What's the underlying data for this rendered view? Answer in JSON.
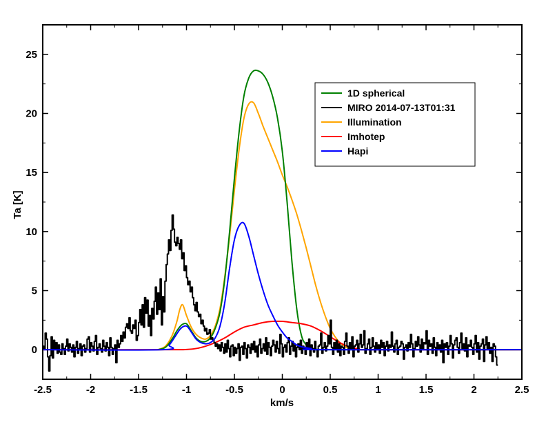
{
  "chart_data": {
    "type": "line",
    "title": "",
    "xlabel": "km/s",
    "ylabel": "Ta [K]",
    "xlim": [
      -2.5,
      2.5
    ],
    "ylim": [
      -2.5,
      27.5
    ],
    "xticks": [
      "-2.5",
      "-2",
      "-1.5",
      "-1",
      "-0.5",
      "0",
      "0.5",
      "1",
      "1.5",
      "2",
      "2.5"
    ],
    "yticks": [
      "0",
      "5",
      "10",
      "15",
      "20",
      "25"
    ],
    "legend_position": "upper-right",
    "series": [
      {
        "name": "1D spherical",
        "color": "#008000",
        "style": "smooth",
        "x": [
          -1.3,
          -1.22,
          -1.15,
          -1.1,
          -1.05,
          -1.0,
          -0.95,
          -0.9,
          -0.85,
          -0.8,
          -0.75,
          -0.7,
          -0.65,
          -0.6,
          -0.55,
          -0.5,
          -0.45,
          -0.4,
          -0.35,
          -0.3,
          -0.25,
          -0.2,
          -0.15,
          -0.1,
          -0.05,
          0.0,
          0.05,
          0.1,
          0.15,
          0.2,
          0.25,
          0.3,
          0.4,
          0.5,
          2.5
        ],
        "y": [
          0,
          0.2,
          0.9,
          1.6,
          2.1,
          2.2,
          1.6,
          1.0,
          0.7,
          0.7,
          1.0,
          1.8,
          3.2,
          6.0,
          10.0,
          14.5,
          18.5,
          21.5,
          23.0,
          23.6,
          23.6,
          23.3,
          22.6,
          21.4,
          19.6,
          16.8,
          12.5,
          7.5,
          3.5,
          1.2,
          0.4,
          0.1,
          0,
          0,
          0
        ]
      },
      {
        "name": "MIRO 2014-07-13T01:31",
        "color": "#000000",
        "style": "step",
        "x_start": -2.5,
        "x_step": 0.0125,
        "y": [
          0.3,
          0.0,
          1.4,
          0.9,
          -0.6,
          -1.8,
          -0.5,
          1.1,
          -0.7,
          0.8,
          0.1,
          0.6,
          -0.3,
          0.4,
          -0.2,
          -0.4,
          0.5,
          0.1,
          -0.4,
          0.3,
          0.9,
          -0.1,
          0.5,
          0.2,
          -0.2,
          0.4,
          -0.6,
          0.2,
          0.7,
          -0.3,
          0.1,
          0.5,
          -0.5,
          0.3,
          0.4,
          -0.2,
          0.1,
          0.9,
          1.1,
          -0.2,
          0.6,
          0.3,
          -0.1,
          0.7,
          1.2,
          -0.4,
          0.2,
          0.5,
          0.1,
          -0.2,
          0.8,
          0.3,
          -0.1,
          0.6,
          0.2,
          -0.5,
          1.0,
          0.2,
          -0.4,
          0.1,
          0.4,
          -1.1,
          0.8,
          0.2,
          0.5,
          1.2,
          0.7,
          1.5,
          1.0,
          1.9,
          2.2,
          1.8,
          2.7,
          1.6,
          1.4,
          2.1,
          1.8,
          2.5,
          0.8,
          1.2,
          2.3,
          3.4,
          2.1,
          3.8,
          1.9,
          4.4,
          3.1,
          4.2,
          2.0,
          2.9,
          1.2,
          3.5,
          2.6,
          4.1,
          5.3,
          3.0,
          4.8,
          3.4,
          6.0,
          2.1,
          4.5,
          3.2,
          5.8,
          7.2,
          8.1,
          9.3,
          8.4,
          10.1,
          11.4,
          10.2,
          9.1,
          8.8,
          9.5,
          9.0,
          8.5,
          9.3,
          7.7,
          8.2,
          6.7,
          7.1,
          6.1,
          5.5,
          5.8,
          4.9,
          5.3,
          4.4,
          3.8,
          3.3,
          4.0,
          3.2,
          2.8,
          3.0,
          2.2,
          2.5,
          2.0,
          1.6,
          1.8,
          1.3,
          1.4,
          1.7,
          0.9,
          1.0,
          0.8,
          0.6,
          0.3,
          0.5,
          0.1,
          0.4,
          -0.1,
          0.6,
          0.2,
          -0.3,
          0.5,
          -0.2,
          0.8,
          0.1,
          -0.6,
          0.3,
          0.4,
          -0.5,
          0.2,
          -0.3,
          0.1,
          0.5,
          -0.9,
          0.2,
          0.3,
          -0.4,
          0.6,
          0.1,
          -0.7,
          0.4,
          0.2,
          -0.3,
          0.5,
          0.0,
          0.7,
          -0.2,
          0.3,
          -0.6,
          0.4,
          0.9,
          -0.3,
          0.1,
          0.5,
          -0.1,
          1.0,
          -0.4,
          0.6,
          0.2,
          -0.5,
          0.3,
          0.8,
          0.4,
          -0.2,
          0.7,
          0.1,
          -0.3,
          1.3,
          0.5,
          -0.6,
          0.2,
          0.4,
          -0.2,
          0.6,
          1.0,
          -0.4,
          0.3,
          0.7,
          -0.1,
          0.4,
          -0.6,
          0.2,
          0.5,
          0.0,
          0.8,
          -0.3,
          0.3,
          0.1,
          -0.4,
          0.6,
          0.2,
          0.9,
          -0.5,
          0.4,
          0.1,
          -0.2,
          0.7,
          0.0,
          -0.6,
          0.3,
          0.4,
          1.4,
          -0.3,
          0.2,
          0.6,
          -0.1,
          0.3,
          1.2,
          0.5,
          2.5,
          0.2,
          -0.4,
          0.6,
          0.1,
          0.8,
          -0.2,
          0.5,
          -0.5,
          0.3,
          0.2,
          -0.4,
          0.7,
          1.4,
          0.3,
          -0.3,
          0.6,
          0.1,
          1.1,
          -0.6,
          0.3,
          0.4,
          0.8,
          -0.2,
          0.5,
          1.3,
          0.2,
          0.4,
          1.6,
          -0.3,
          0.1,
          0.5,
          0.9,
          -0.4,
          0.2,
          1.0,
          0.3,
          -0.2,
          0.6,
          0.1,
          0.4,
          -0.3,
          0.8,
          0.2,
          0.6,
          -0.5,
          0.3,
          0.7,
          -0.1,
          0.4,
          0.2,
          1.5,
          0.3,
          -0.2,
          0.5,
          0.8,
          -0.4,
          0.2,
          0.3,
          0.7,
          0.5,
          -0.8,
          0.2,
          0.4,
          -0.1,
          0.6,
          0.2,
          1.3,
          0.5,
          -0.6,
          0.1,
          0.7,
          0.3,
          1.1,
          0.4,
          -0.2,
          0.9,
          0.0,
          0.6,
          0.5,
          1.6,
          -0.4,
          0.8,
          0.3,
          0.5,
          -0.3,
          1.0,
          0.2,
          -0.5,
          0.6,
          0.1,
          0.4,
          -0.2,
          0.8,
          -1.1,
          0.5,
          0.2,
          0.6,
          -0.4,
          0.3,
          1.2,
          0.5,
          -0.7,
          0.4,
          0.8,
          1.0,
          0.2,
          -0.3,
          0.6,
          1.4,
          0.1,
          0.5,
          -0.1,
          1.0,
          -0.6,
          0.4,
          0.3,
          0.8,
          0.2,
          -0.4,
          0.5,
          1.2,
          -0.2,
          0.6,
          -0.8,
          0.3,
          0.5,
          0.9,
          -1.0,
          0.4,
          1.1,
          0.1,
          0.6,
          -0.3,
          0.2,
          -1.0,
          0.5,
          0.3,
          -0.6,
          -1.3
        ]
      },
      {
        "name": "Illumination",
        "color": "#FFA500",
        "style": "smooth",
        "x": [
          -1.3,
          -1.22,
          -1.15,
          -1.1,
          -1.07,
          -1.04,
          -1.0,
          -0.95,
          -0.9,
          -0.85,
          -0.8,
          -0.75,
          -0.7,
          -0.65,
          -0.6,
          -0.55,
          -0.5,
          -0.45,
          -0.4,
          -0.35,
          -0.3,
          -0.25,
          -0.2,
          -0.15,
          -0.1,
          -0.05,
          0.0,
          0.05,
          0.1,
          0.15,
          0.2,
          0.25,
          0.3,
          0.35,
          0.4,
          0.45,
          0.5,
          0.55,
          0.6,
          0.65,
          0.7,
          0.8,
          0.9,
          2.5
        ],
        "y": [
          0,
          0.3,
          1.2,
          2.4,
          3.4,
          3.8,
          2.9,
          1.9,
          1.3,
          1.0,
          0.9,
          1.2,
          2.0,
          3.5,
          6.2,
          9.6,
          13.5,
          17.0,
          19.6,
          20.8,
          20.9,
          20.0,
          18.9,
          17.9,
          16.9,
          15.9,
          14.8,
          13.8,
          12.7,
          11.5,
          10.1,
          8.6,
          7.0,
          5.4,
          4.0,
          2.8,
          1.8,
          1.1,
          0.6,
          0.3,
          0.1,
          0,
          0,
          0
        ]
      },
      {
        "name": "Imhotep",
        "color": "#FF0000",
        "style": "smooth",
        "x": [
          -2.5,
          -1.2,
          -1.0,
          -0.9,
          -0.8,
          -0.7,
          -0.6,
          -0.5,
          -0.4,
          -0.3,
          -0.2,
          -0.1,
          0.0,
          0.1,
          0.2,
          0.3,
          0.4,
          0.5,
          0.6,
          0.7,
          0.8,
          0.9,
          2.5
        ],
        "y": [
          0,
          0,
          0.02,
          0.1,
          0.3,
          0.6,
          1.0,
          1.5,
          1.9,
          2.1,
          2.3,
          2.4,
          2.4,
          2.3,
          2.2,
          2.0,
          1.6,
          1.1,
          0.6,
          0.25,
          0.08,
          0,
          0
        ]
      },
      {
        "name": "Hapi",
        "color": "#0000FF",
        "style": "smooth",
        "x": [
          -2.5,
          -1.25,
          -1.18,
          -1.12,
          -1.06,
          -1.0,
          -0.95,
          -0.9,
          -0.85,
          -0.8,
          -0.75,
          -0.7,
          -0.65,
          -0.6,
          -0.55,
          -0.5,
          -0.45,
          -0.4,
          -0.35,
          -0.3,
          -0.25,
          -0.2,
          -0.15,
          -0.1,
          -0.05,
          0.0,
          0.05,
          0.1,
          0.15,
          0.2,
          0.3,
          0.4,
          2.5
        ],
        "y": [
          0,
          0,
          0.4,
          1.1,
          1.8,
          2.0,
          1.5,
          0.9,
          0.6,
          0.5,
          0.6,
          1.0,
          2.0,
          4.0,
          6.9,
          9.3,
          10.5,
          10.7,
          9.6,
          8.0,
          6.4,
          5.0,
          3.8,
          2.9,
          2.1,
          1.5,
          1.0,
          0.7,
          0.4,
          0.25,
          0.1,
          0,
          0
        ]
      }
    ]
  },
  "legend": {
    "items": [
      {
        "label": "1D spherical",
        "color": "#008000"
      },
      {
        "label": "MIRO 2014-07-13T01:31",
        "color": "#000000"
      },
      {
        "label": "Illumination",
        "color": "#FFA500"
      },
      {
        "label": "Imhotep",
        "color": "#FF0000"
      },
      {
        "label": "Hapi",
        "color": "#0000FF"
      }
    ]
  }
}
